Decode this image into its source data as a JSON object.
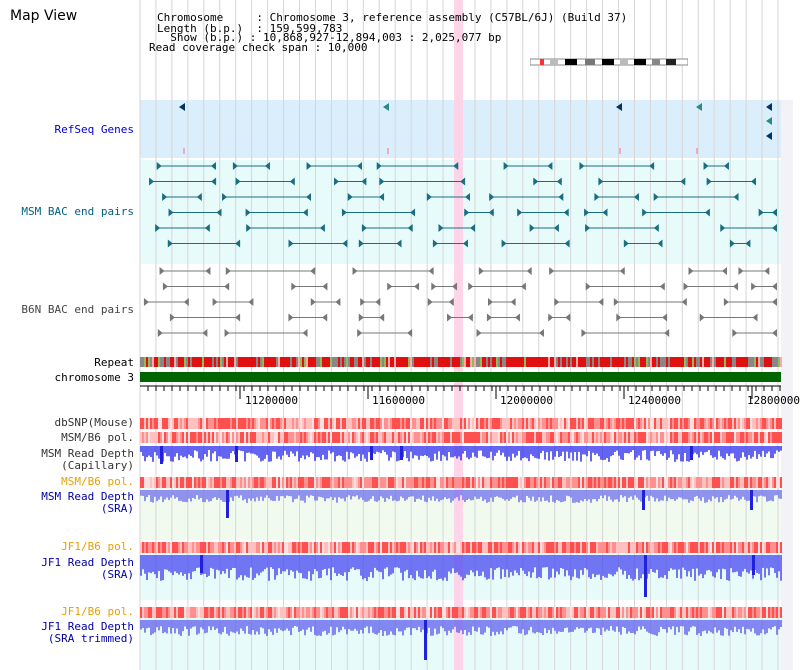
{
  "app_title": "Map View",
  "info": {
    "chromosome_line": "Chromosome     : Chromosome 3, reference assembly (C57BL/6J) (Build 37)",
    "length_line": "Length (b.p.)  : 159,599,783",
    "show_line": "  Show (b.p.) : 10,868,927-12,894,003 : 2,025,077 bp",
    "coverage_line": "Read coverage check span : 10,000"
  },
  "colors": {
    "refseq_label": "#0000cc",
    "bac_label": "#005f7f",
    "yellow_label": "#e8a000",
    "blue_label": "#0000aa",
    "highlight": "#ffd0e8",
    "chromosome_bar": "#006400",
    "depth_blue": "#3030ee"
  },
  "tracks": {
    "refseq": "RefSeq Genes",
    "msm_bac": "MSM BAC end pairs",
    "b6n_bac": "B6N BAC end pairs",
    "repeat": "Repeat",
    "chromosome": "chromosome 3",
    "dbsnp": "dbSNP(Mouse)",
    "msm_b6_pol_1": "MSM/B6 pol.",
    "msm_depth_cap_1": "MSM Read Depth",
    "msm_depth_cap_2": "(Capillary)",
    "msm_b6_pol_2": "MSM/B6 pol.",
    "msm_depth_sra_1": "MSM Read Depth",
    "msm_depth_sra_2": "(SRA)",
    "jf1_b6_pol_1": "JF1/B6 pol.",
    "jf1_depth_sra_1": "JF1 Read Depth",
    "jf1_depth_sra_2": "(SRA)",
    "jf1_b6_pol_2": "JF1/B6 pol.",
    "jf1_depth_trim_1": "JF1 Read Depth",
    "jf1_depth_trim_2": "(SRA trimmed)"
  },
  "axis": {
    "ticks": [
      "11200000",
      "11600000",
      "12000000",
      "12400000",
      "12800000"
    ]
  }
}
